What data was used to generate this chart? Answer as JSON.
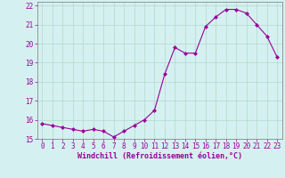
{
  "x": [
    0,
    1,
    2,
    3,
    4,
    5,
    6,
    7,
    8,
    9,
    10,
    11,
    12,
    13,
    14,
    15,
    16,
    17,
    18,
    19,
    20,
    21,
    22,
    23
  ],
  "y": [
    15.8,
    15.7,
    15.6,
    15.5,
    15.4,
    15.5,
    15.4,
    15.1,
    15.4,
    15.7,
    16.0,
    16.5,
    18.4,
    19.8,
    19.5,
    19.5,
    20.9,
    21.4,
    21.8,
    21.8,
    21.6,
    21.0,
    20.4,
    19.3
  ],
  "xlabel": "Windchill (Refroidissement éolien,°C)",
  "ylim": [
    15,
    22
  ],
  "xlim": [
    -0.5,
    23.5
  ],
  "yticks": [
    15,
    16,
    17,
    18,
    19,
    20,
    21,
    22
  ],
  "xticks": [
    0,
    1,
    2,
    3,
    4,
    5,
    6,
    7,
    8,
    9,
    10,
    11,
    12,
    13,
    14,
    15,
    16,
    17,
    18,
    19,
    20,
    21,
    22,
    23
  ],
  "line_color": "#990099",
  "marker": "D",
  "marker_size": 2.0,
  "background_color": "#d5f0f0",
  "grid_color": "#b0d8cc",
  "xlabel_color": "#990099",
  "tick_color": "#990099",
  "tick_fontsize": 5.5,
  "xlabel_fontsize": 6.0
}
